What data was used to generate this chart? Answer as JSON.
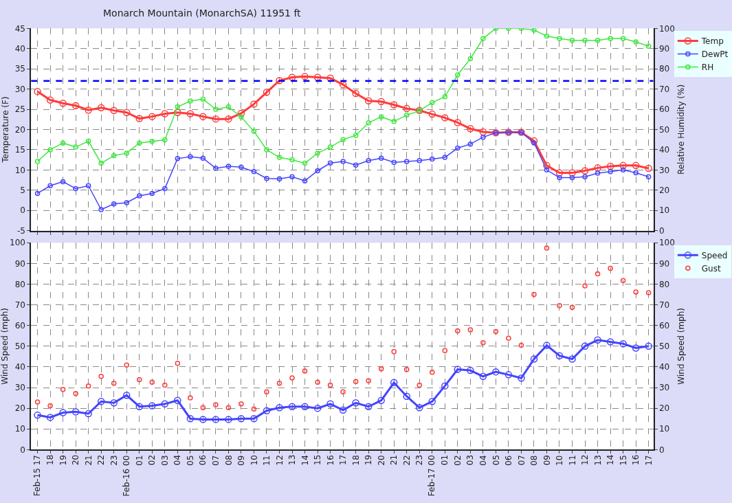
{
  "chart_data": [
    {
      "type": "line",
      "title": "Monarch Mountain (MonarchSA) 11951 ft",
      "ylabel": "Temperature (F)",
      "y2label": "Relative Humidity (%)",
      "categories": [
        null,
        null,
        null,
        null,
        null,
        null,
        null,
        null,
        null,
        null,
        null,
        null,
        null,
        null,
        null,
        null,
        null,
        null,
        null,
        null,
        null,
        null,
        null,
        null,
        null,
        null,
        null,
        null,
        null,
        null,
        null,
        null,
        null,
        null,
        null,
        null,
        null,
        null,
        null,
        null,
        null,
        null,
        null,
        null,
        null,
        null,
        null,
        null,
        null
      ],
      "series": [
        {
          "name": "Temp",
          "color": "#ff3b3b",
          "values": [
            29.4,
            27.3,
            26.5,
            25.9,
            24.8,
            25.4,
            24.7,
            24.2,
            22.7,
            23.2,
            23.9,
            24.2,
            23.9,
            23.2,
            22.6,
            22.6,
            24.0,
            26.3,
            29.2,
            32.1,
            32.9,
            33.1,
            32.9,
            32.7,
            31.1,
            28.9,
            27.1,
            26.9,
            26.1,
            25.2,
            24.7,
            23.8,
            22.9,
            21.7,
            20.2,
            19.4,
            19.2,
            19.3,
            19.3,
            17.2,
            11.1,
            9.3,
            9.3,
            9.8,
            10.5,
            10.9,
            11.1,
            11.1,
            10.4
          ]
        },
        {
          "name": "DewPt",
          "color": "#4444ff",
          "values": [
            4.2,
            6.1,
            7.1,
            5.4,
            6.1,
            0.2,
            1.6,
            1.9,
            3.6,
            4.2,
            5.4,
            12.8,
            13.3,
            12.9,
            10.4,
            10.9,
            10.7,
            9.6,
            7.9,
            7.8,
            8.3,
            7.3,
            9.8,
            11.7,
            12.1,
            11.2,
            12.3,
            12.9,
            11.9,
            12.1,
            12.3,
            12.7,
            13.1,
            15.4,
            16.4,
            18.1,
            19.2,
            19.3,
            19.3,
            16.7,
            10.0,
            8.1,
            8.1,
            8.3,
            9.2,
            9.6,
            10.0,
            9.3,
            8.3
          ]
        },
        {
          "name": "RH",
          "color": "#3ee83e",
          "axis": "y2",
          "values": [
            34.2,
            40,
            43.3,
            41.3,
            44.2,
            33.3,
            37.1,
            38.3,
            43.3,
            44.1,
            44.9,
            61.2,
            64.1,
            65,
            60,
            61.2,
            56.2,
            49.1,
            40,
            36.2,
            35,
            33.3,
            38.3,
            41.3,
            45,
            47.1,
            53.3,
            56.3,
            54,
            57.1,
            59.3,
            63.3,
            66.2,
            77,
            85,
            95,
            100,
            100,
            100,
            99.2,
            96.2,
            95,
            94.1,
            94.1,
            94.1,
            95,
            95,
            93.3,
            91.2
          ]
        }
      ],
      "ylim": [
        -5,
        45
      ],
      "yticks": [
        -5,
        0,
        5,
        10,
        15,
        20,
        25,
        30,
        35,
        40,
        45
      ],
      "y2lim": [
        0,
        100
      ],
      "y2ticks": [
        0,
        10,
        20,
        30,
        40,
        50,
        60,
        70,
        80,
        90,
        100
      ],
      "ref_lines": [
        {
          "axis": "y",
          "value": 32,
          "color": "#0000ff",
          "line_style": "dashed"
        }
      ],
      "grid": true,
      "legend": "top right",
      "marker": "circle",
      "line_style": "solid",
      "tick_labels": "y"
    },
    {
      "type": "line",
      "ylabel": "Wind Speed (mph)",
      "y2label": "Wind Speed (mph)",
      "categories": [
        "Feb-15 17",
        "18",
        "19",
        "20",
        "21",
        "22",
        "23",
        "Feb-16 00",
        "01",
        "02",
        "03",
        "04",
        "05",
        "06",
        "07",
        "08",
        "09",
        "10",
        "11",
        "12",
        "13",
        "14",
        "15",
        "16",
        "17",
        "18",
        "19",
        "20",
        "21",
        "22",
        "23",
        "Feb-17 00",
        "01",
        "02",
        "03",
        "04",
        "05",
        "06",
        "07",
        "08",
        "09",
        "10",
        "11",
        "12",
        "13",
        "14",
        "15",
        "16",
        "17"
      ],
      "series": [
        {
          "name": "Speed",
          "color": "#4444ff",
          "values": [
            16.7,
            15.6,
            17.9,
            18.3,
            17.4,
            23.3,
            22.6,
            26.3,
            20.8,
            21.2,
            22.1,
            23.8,
            15,
            14.6,
            14.6,
            14.6,
            15,
            15,
            18.8,
            20.3,
            20.8,
            20.8,
            20,
            22.1,
            19.1,
            22.6,
            20.8,
            23.8,
            32.4,
            25.8,
            20.3,
            23.3,
            30.8,
            38.8,
            38.3,
            35.4,
            37.6,
            36.2,
            34.6,
            43.8,
            50.4,
            45.4,
            43.8,
            50,
            53,
            52.1,
            51.2,
            49.1,
            50
          ]
        },
        {
          "name": "Gust",
          "color": "#ff3b3b",
          "type": "scatter",
          "values": [
            23,
            21.2,
            29.1,
            27.1,
            30.8,
            35.4,
            32.1,
            40.9,
            33.8,
            32.6,
            31.2,
            41.7,
            25,
            20.3,
            21.7,
            20.3,
            22.1,
            19.6,
            27.9,
            32.1,
            34.7,
            38,
            32.6,
            31.2,
            27.9,
            32.9,
            33.3,
            39.1,
            47.4,
            38.7,
            31.2,
            37.4,
            47.9,
            57.4,
            57.9,
            51.7,
            57.1,
            53.8,
            50.4,
            75,
            97.4,
            69.6,
            68.8,
            79.2,
            85,
            87.6,
            81.7,
            76.2,
            75.8
          ]
        }
      ],
      "ylim": [
        0,
        100
      ],
      "yticks": [
        0,
        10,
        20,
        30,
        40,
        50,
        60,
        70,
        80,
        90,
        100
      ],
      "y2lim": [
        0,
        100
      ],
      "y2ticks": [
        0,
        10,
        20,
        30,
        40,
        50,
        60,
        70,
        80,
        90,
        100
      ],
      "grid": true,
      "legend": "top right",
      "marker": "circle",
      "line_style": "solid"
    }
  ]
}
